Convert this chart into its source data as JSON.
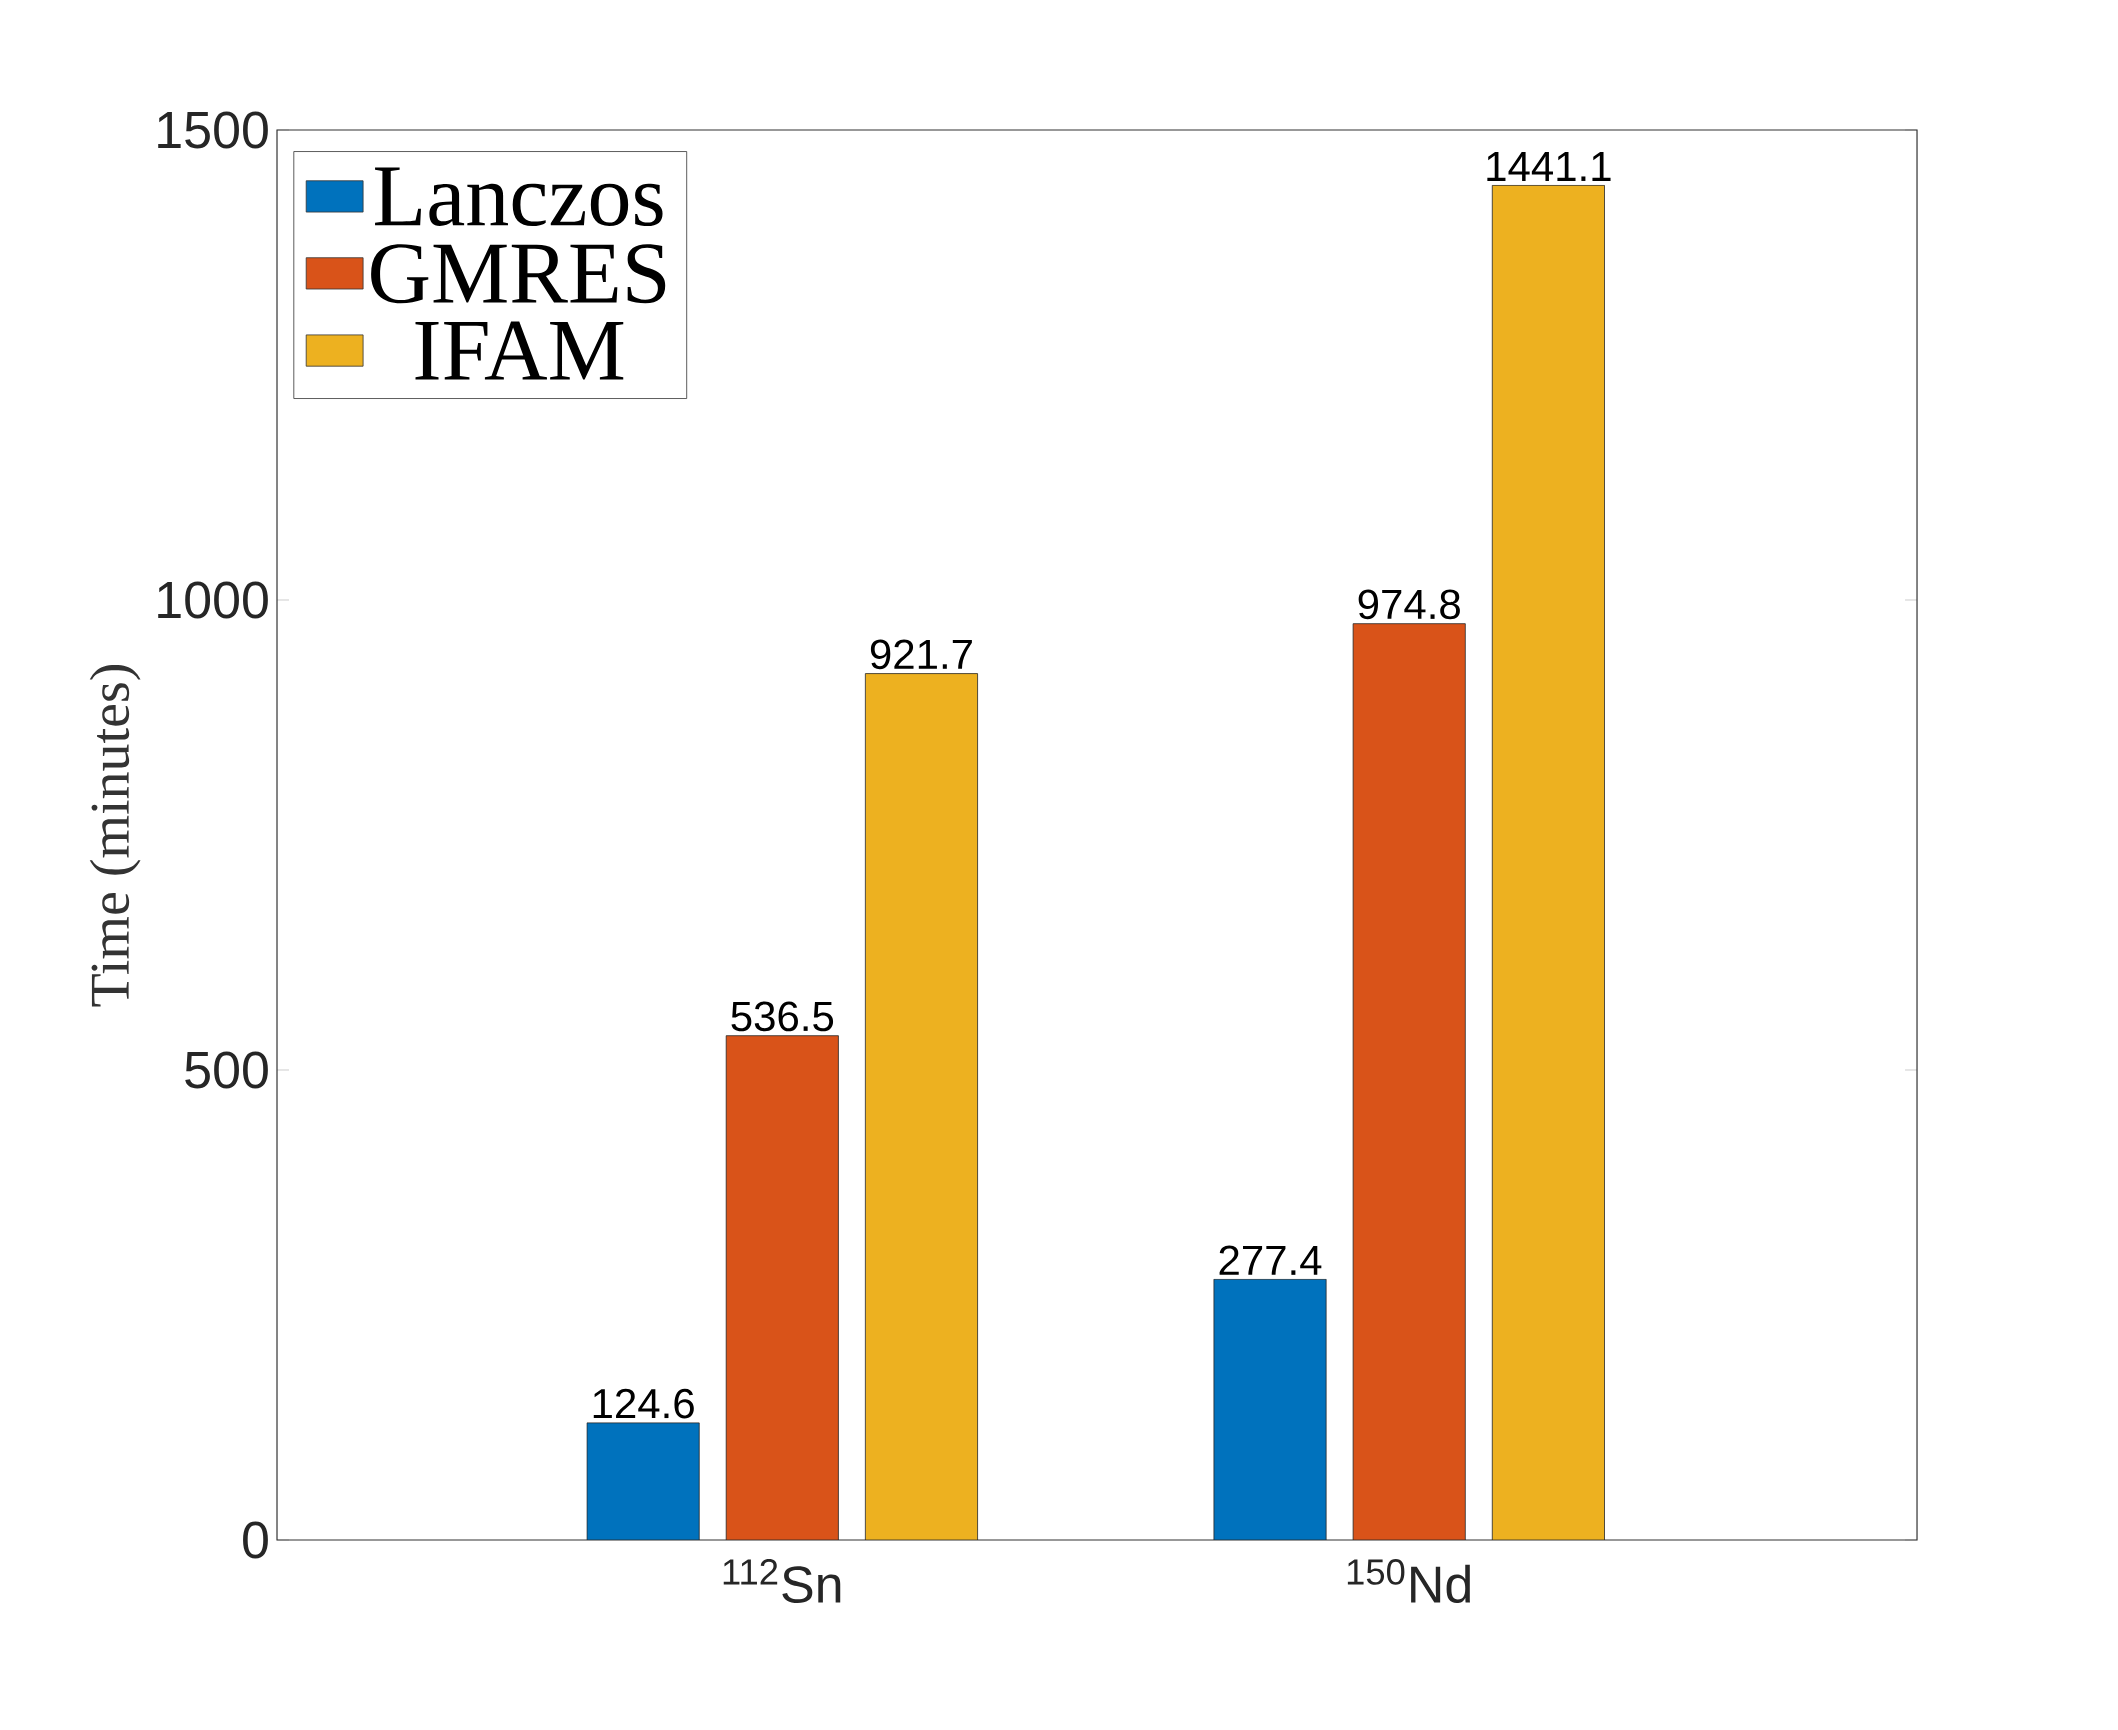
{
  "chart_data": {
    "type": "bar",
    "ylabel": "Time (minutes)",
    "categories": [
      "$^{112}$Sn",
      "$^{150}$Nd"
    ],
    "series": [
      {
        "name": "Lanczos",
        "color": "#0072bd",
        "values": [
          124.6,
          277.4
        ]
      },
      {
        "name": "GMRES",
        "color": "#d95319",
        "values": [
          536.5,
          974.8
        ]
      },
      {
        "name": "IFAM",
        "color": "#edb120",
        "values": [
          921.7,
          1441.1
        ]
      }
    ],
    "ylim": [
      0,
      1500
    ],
    "yticks": [
      0,
      500,
      1000,
      1500
    ],
    "data_labels": true,
    "legend": "top left",
    "grid": false
  }
}
